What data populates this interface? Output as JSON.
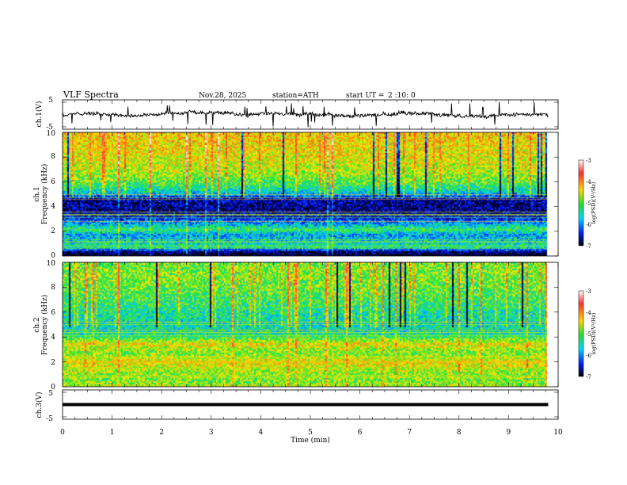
{
  "header": {
    "title": "VLF Spectra",
    "date": "Nov.28, 2025",
    "station": "station=ATH",
    "start_label": "start UT =",
    "start_time": "2 :10: 0"
  },
  "chart_data": [
    {
      "type": "line",
      "name": "ch1-waveform",
      "ylabel": "ch.1(V)",
      "ylim": [
        -5,
        5
      ],
      "yticks": [
        "5",
        "-5"
      ],
      "xlim": [
        0,
        10
      ],
      "data_extent_min": 9.8,
      "baseline": 0
    },
    {
      "type": "heatmap",
      "name": "ch1-spectrogram",
      "ylabel_channel": "ch.1",
      "ylabel": "Frequency (kHz)",
      "ylim": [
        0,
        10
      ],
      "yticks": [
        "0",
        "2",
        "4",
        "6",
        "8",
        "10"
      ],
      "xlim": [
        0,
        10
      ],
      "data_extent_min": 9.8,
      "colorbar": {
        "label": "log(PSD)(V²/Hz)",
        "range": [
          -7,
          -3
        ],
        "ticks": [
          "-3",
          "-4",
          "-5",
          "-6",
          "-7"
        ]
      },
      "profile": [
        {
          "f": 0.0,
          "v": -7.0
        },
        {
          "f": 0.4,
          "v": -6.6
        },
        {
          "f": 0.8,
          "v": -5.3
        },
        {
          "f": 1.2,
          "v": -5.6
        },
        {
          "f": 1.8,
          "v": -5.8
        },
        {
          "f": 2.2,
          "v": -5.2
        },
        {
          "f": 2.6,
          "v": -5.7
        },
        {
          "f": 3.0,
          "v": -6.2
        },
        {
          "f": 3.8,
          "v": -6.6
        },
        {
          "f": 4.6,
          "v": -6.5
        },
        {
          "f": 5.2,
          "v": -5.6
        },
        {
          "f": 6.0,
          "v": -5.1
        },
        {
          "f": 7.0,
          "v": -4.8
        },
        {
          "f": 8.5,
          "v": -4.6
        },
        {
          "f": 10.0,
          "v": -4.5
        }
      ]
    },
    {
      "type": "heatmap",
      "name": "ch2-spectrogram",
      "ylabel_channel": "ch.2",
      "ylabel": "Frequency (kHz)",
      "ylim": [
        0,
        10
      ],
      "yticks": [
        "0",
        "2",
        "4",
        "6",
        "8",
        "10"
      ],
      "xlim": [
        0,
        10
      ],
      "data_extent_min": 9.8,
      "colorbar": {
        "label": "log(PSD)(V²/Hz)",
        "range": [
          -7,
          -3
        ],
        "ticks": [
          "-3",
          "-4",
          "-5",
          "-6",
          "-7"
        ]
      },
      "profile": [
        {
          "f": 0.0,
          "v": -4.8
        },
        {
          "f": 0.6,
          "v": -5.0
        },
        {
          "f": 1.2,
          "v": -4.9
        },
        {
          "f": 2.0,
          "v": -4.6
        },
        {
          "f": 2.8,
          "v": -5.0
        },
        {
          "f": 3.5,
          "v": -4.6
        },
        {
          "f": 4.2,
          "v": -5.4
        },
        {
          "f": 5.0,
          "v": -5.5
        },
        {
          "f": 6.0,
          "v": -5.4
        },
        {
          "f": 7.0,
          "v": -5.2
        },
        {
          "f": 8.5,
          "v": -5.0
        },
        {
          "f": 10.0,
          "v": -5.0
        }
      ]
    },
    {
      "type": "line",
      "name": "ch3-waveform",
      "ylabel": "ch.3(V)",
      "ylim": [
        -5,
        5
      ],
      "yticks": [
        "5",
        "-5"
      ],
      "xlim": [
        0,
        10
      ],
      "data_extent_min": 9.8,
      "baseline": 0
    }
  ],
  "xaxis": {
    "label": "Time (min)",
    "ticks": [
      "0",
      "1",
      "2",
      "3",
      "4",
      "5",
      "6",
      "7",
      "8",
      "9",
      "10"
    ]
  }
}
